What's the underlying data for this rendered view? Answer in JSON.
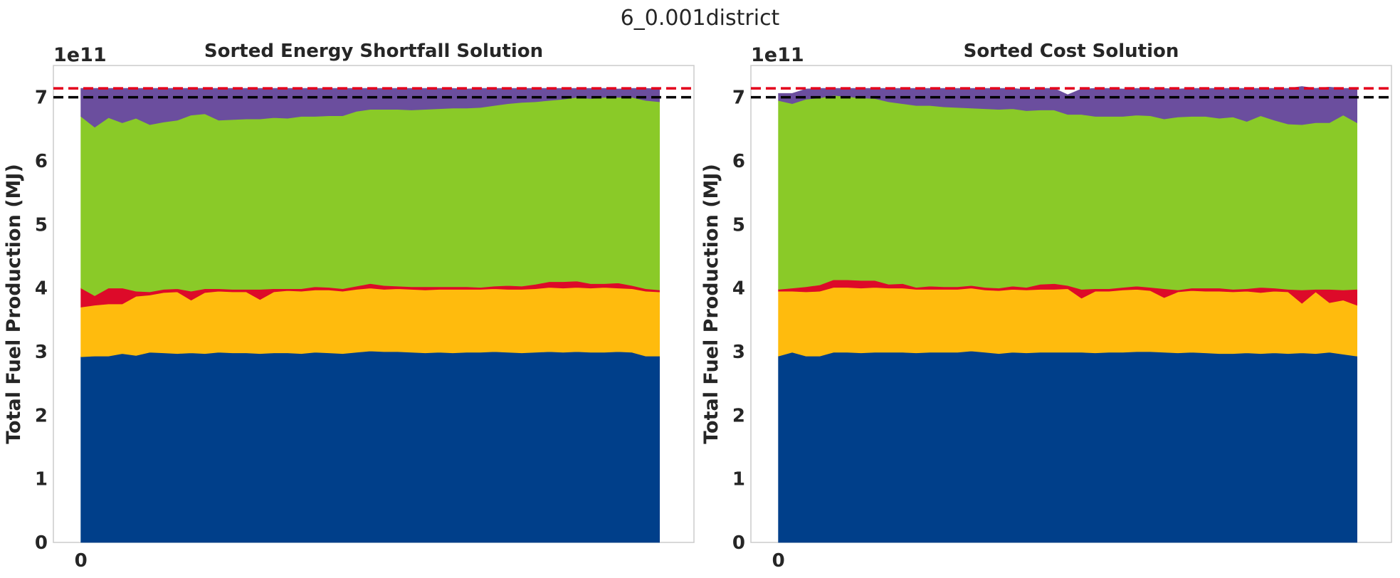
{
  "figure": {
    "title": "6_0.001district"
  },
  "colors": {
    "layer1": "#003f8a",
    "layer2": "#ffbb0d",
    "layer3": "#dd0a29",
    "layer4": "#8aca28",
    "layer5": "#6b4e9e",
    "line_red": "#e3001b",
    "line_black": "#000000"
  },
  "chart_data": [
    {
      "type": "area",
      "title": "Sorted Energy Shortfall Solution",
      "ylabel": "Total Fuel Production (MJ)",
      "y_offset_label": "1e11",
      "xticks": [
        {
          "value": 0,
          "label": "0"
        }
      ],
      "yticks": [
        {
          "value": 0,
          "label": "0"
        },
        {
          "value": 1,
          "label": "1"
        },
        {
          "value": 2,
          "label": "2"
        },
        {
          "value": 3,
          "label": "3"
        },
        {
          "value": 4,
          "label": "4"
        },
        {
          "value": 5,
          "label": "5"
        },
        {
          "value": 6,
          "label": "6"
        },
        {
          "value": 7,
          "label": "7"
        }
      ],
      "xlim": [
        -2,
        44.5
      ],
      "ylim": [
        0,
        7.5
      ],
      "hlines": [
        {
          "value": 7.14,
          "color": "line_red",
          "style": "dashed"
        },
        {
          "value": 7.0,
          "color": "line_black",
          "style": "dashed"
        }
      ],
      "grid": false,
      "x": [
        0,
        1,
        2,
        3,
        4,
        5,
        6,
        7,
        8,
        9,
        10,
        11,
        12,
        13,
        14,
        15,
        16,
        17,
        18,
        19,
        20,
        21,
        22,
        23,
        24,
        25,
        26,
        27,
        28,
        29,
        30,
        31,
        32,
        33,
        34,
        35,
        36,
        37,
        38,
        39,
        40,
        41,
        42
      ],
      "series": [
        {
          "color": "layer1",
          "values": [
            2.92,
            2.93,
            2.93,
            2.97,
            2.94,
            2.99,
            2.98,
            2.97,
            2.98,
            2.97,
            2.99,
            2.98,
            2.98,
            2.97,
            2.98,
            2.98,
            2.97,
            2.99,
            2.98,
            2.97,
            2.99,
            3.01,
            3.0,
            3.0,
            2.99,
            2.98,
            2.99,
            2.98,
            2.99,
            2.99,
            3.0,
            2.99,
            2.98,
            2.99,
            3.0,
            2.99,
            3.0,
            2.99,
            2.99,
            3.0,
            2.99,
            2.93,
            2.93
          ]
        },
        {
          "color": "layer2",
          "values": [
            0.78,
            0.8,
            0.82,
            0.78,
            0.93,
            0.9,
            0.95,
            0.97,
            0.83,
            0.96,
            0.96,
            0.96,
            0.96,
            0.85,
            0.96,
            0.98,
            0.98,
            0.98,
            0.99,
            0.98,
            0.99,
            0.99,
            0.98,
            0.99,
            0.99,
            0.99,
            0.99,
            1.0,
            0.99,
            0.99,
            0.99,
            0.99,
            1.0,
            1.0,
            1.01,
            1.01,
            1.01,
            1.01,
            1.02,
            1.0,
            1.0,
            1.02,
            1.01
          ]
        },
        {
          "color": "layer3",
          "values": [
            0.3,
            0.15,
            0.25,
            0.25,
            0.08,
            0.05,
            0.05,
            0.05,
            0.14,
            0.06,
            0.04,
            0.04,
            0.04,
            0.16,
            0.05,
            0.03,
            0.04,
            0.05,
            0.04,
            0.04,
            0.05,
            0.07,
            0.06,
            0.04,
            0.04,
            0.05,
            0.04,
            0.04,
            0.04,
            0.03,
            0.04,
            0.06,
            0.05,
            0.07,
            0.09,
            0.1,
            0.1,
            0.07,
            0.06,
            0.08,
            0.05,
            0.04,
            0.03
          ]
        },
        {
          "color": "layer4",
          "values": [
            2.7,
            2.65,
            2.68,
            2.6,
            2.72,
            2.63,
            2.63,
            2.65,
            2.77,
            2.75,
            2.65,
            2.67,
            2.68,
            2.68,
            2.69,
            2.68,
            2.71,
            2.68,
            2.7,
            2.72,
            2.75,
            2.74,
            2.77,
            2.78,
            2.78,
            2.79,
            2.8,
            2.81,
            2.81,
            2.83,
            2.84,
            2.86,
            2.89,
            2.87,
            2.85,
            2.87,
            2.89,
            2.91,
            2.93,
            2.92,
            2.96,
            2.96,
            2.96
          ]
        },
        {
          "color": "layer5",
          "values": [
            0.44,
            0.61,
            0.46,
            0.54,
            0.47,
            0.57,
            0.53,
            0.5,
            0.42,
            0.4,
            0.5,
            0.49,
            0.48,
            0.48,
            0.46,
            0.47,
            0.44,
            0.44,
            0.43,
            0.43,
            0.36,
            0.33,
            0.33,
            0.33,
            0.34,
            0.33,
            0.32,
            0.31,
            0.3,
            0.3,
            0.27,
            0.24,
            0.22,
            0.21,
            0.19,
            0.17,
            0.14,
            0.16,
            0.14,
            0.13,
            0.14,
            0.19,
            0.2
          ]
        }
      ]
    },
    {
      "type": "area",
      "title": "Sorted Cost Solution",
      "ylabel": "Total Fuel Production (MJ)",
      "y_offset_label": "1e11",
      "xticks": [
        {
          "value": 0,
          "label": "0"
        }
      ],
      "yticks": [
        {
          "value": 0,
          "label": "0"
        },
        {
          "value": 1,
          "label": "1"
        },
        {
          "value": 2,
          "label": "2"
        },
        {
          "value": 3,
          "label": "3"
        },
        {
          "value": 4,
          "label": "4"
        },
        {
          "value": 5,
          "label": "5"
        },
        {
          "value": 6,
          "label": "6"
        },
        {
          "value": 7,
          "label": "7"
        }
      ],
      "xlim": [
        -2,
        44.5
      ],
      "ylim": [
        0,
        7.5
      ],
      "hlines": [
        {
          "value": 7.14,
          "color": "line_red",
          "style": "dashed"
        },
        {
          "value": 7.0,
          "color": "line_black",
          "style": "dashed"
        }
      ],
      "grid": false,
      "x": [
        0,
        1,
        2,
        3,
        4,
        5,
        6,
        7,
        8,
        9,
        10,
        11,
        12,
        13,
        14,
        15,
        16,
        17,
        18,
        19,
        20,
        21,
        22,
        23,
        24,
        25,
        26,
        27,
        28,
        29,
        30,
        31,
        32,
        33,
        34,
        35,
        36,
        37,
        38,
        39,
        40,
        41,
        42
      ],
      "series": [
        {
          "color": "layer1",
          "values": [
            2.93,
            2.99,
            2.93,
            2.93,
            2.99,
            2.99,
            2.98,
            2.99,
            2.99,
            2.99,
            2.98,
            2.99,
            2.99,
            2.99,
            3.01,
            2.99,
            2.97,
            2.99,
            2.98,
            2.99,
            2.99,
            2.99,
            2.99,
            2.98,
            2.99,
            2.99,
            3.0,
            3.0,
            2.99,
            2.98,
            2.99,
            2.98,
            2.97,
            2.97,
            2.98,
            2.97,
            2.98,
            2.97,
            2.98,
            2.97,
            2.99,
            2.96,
            2.93
          ]
        },
        {
          "color": "layer2",
          "values": [
            1.02,
            0.96,
            1.01,
            1.02,
            1.02,
            1.02,
            1.02,
            1.02,
            1.01,
            1.01,
            1.0,
            0.99,
            0.99,
            0.99,
            0.99,
            0.98,
            0.99,
            0.99,
            0.99,
            0.99,
            0.99,
            1.0,
            0.85,
            0.97,
            0.96,
            0.98,
            0.98,
            0.96,
            0.86,
            0.96,
            0.97,
            0.97,
            0.98,
            0.97,
            0.97,
            0.96,
            0.97,
            0.97,
            0.78,
            0.97,
            0.78,
            0.85,
            0.8
          ]
        },
        {
          "color": "layer3",
          "values": [
            0.03,
            0.05,
            0.08,
            0.1,
            0.12,
            0.12,
            0.12,
            0.11,
            0.06,
            0.07,
            0.03,
            0.05,
            0.04,
            0.04,
            0.04,
            0.04,
            0.04,
            0.05,
            0.04,
            0.08,
            0.09,
            0.05,
            0.14,
            0.04,
            0.04,
            0.04,
            0.05,
            0.05,
            0.14,
            0.03,
            0.04,
            0.05,
            0.05,
            0.04,
            0.04,
            0.08,
            0.05,
            0.04,
            0.21,
            0.04,
            0.21,
            0.16,
            0.25
          ]
        },
        {
          "color": "layer4",
          "values": [
            2.97,
            2.9,
            2.95,
            2.94,
            2.9,
            2.88,
            2.87,
            2.86,
            2.87,
            2.83,
            2.86,
            2.84,
            2.83,
            2.82,
            2.79,
            2.81,
            2.81,
            2.79,
            2.78,
            2.74,
            2.73,
            2.69,
            2.75,
            2.71,
            2.71,
            2.69,
            2.69,
            2.7,
            2.67,
            2.72,
            2.7,
            2.7,
            2.67,
            2.71,
            2.63,
            2.7,
            2.64,
            2.6,
            2.6,
            2.62,
            2.62,
            2.75,
            2.62
          ]
        },
        {
          "color": "layer5",
          "values": [
            0.11,
            0.16,
            0.16,
            0.15,
            0.11,
            0.13,
            0.15,
            0.16,
            0.21,
            0.24,
            0.27,
            0.27,
            0.29,
            0.3,
            0.31,
            0.32,
            0.33,
            0.32,
            0.33,
            0.34,
            0.34,
            0.31,
            0.4,
            0.44,
            0.44,
            0.43,
            0.42,
            0.43,
            0.48,
            0.44,
            0.44,
            0.44,
            0.47,
            0.45,
            0.52,
            0.43,
            0.5,
            0.56,
            0.6,
            0.54,
            0.56,
            0.42,
            0.54
          ]
        }
      ]
    }
  ]
}
